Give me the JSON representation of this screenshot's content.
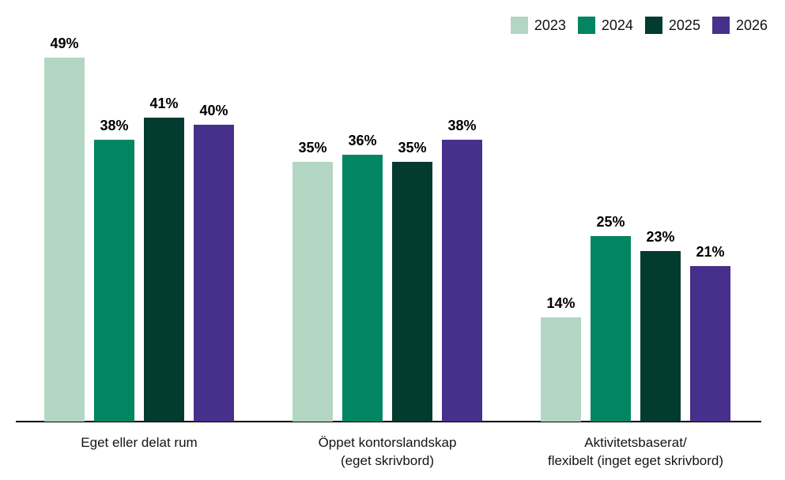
{
  "chart_data": {
    "type": "bar",
    "title": "",
    "xlabel": "",
    "ylabel": "",
    "value_suffix": "%",
    "ylim": [
      0,
      52
    ],
    "grid": false,
    "legend_position": "top-right",
    "categories": [
      {
        "id": "eget-eller-delat-rum",
        "label_lines": [
          "Eget eller delat rum"
        ]
      },
      {
        "id": "oppet-kontorslandskap",
        "label_lines": [
          "Öppet kontorslandskap",
          "(eget skrivbord)"
        ]
      },
      {
        "id": "aktivitetsbaserat-flexibelt",
        "label_lines": [
          "Aktivitetsbaserat/",
          "flexibelt (inget eget skrivbord)"
        ]
      }
    ],
    "series": [
      {
        "name": "2023",
        "color": "#b3d6c2",
        "values": [
          49,
          35,
          14
        ]
      },
      {
        "name": "2024",
        "color": "#018562",
        "values": [
          38,
          36,
          25
        ]
      },
      {
        "name": "2025",
        "color": "#033b30",
        "values": [
          41,
          35,
          23
        ]
      },
      {
        "name": "2026",
        "color": "#46308b",
        "values": [
          40,
          38,
          21
        ]
      }
    ]
  }
}
